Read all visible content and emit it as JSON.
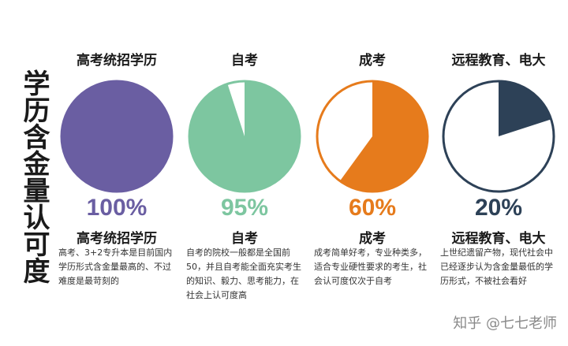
{
  "side_title": "学历含金量认可度",
  "chart_data": {
    "type": "pie",
    "title": "学历含金量认可度",
    "charts": [
      {
        "header": "高考统招学历",
        "label": "高考统招学历",
        "value": 100,
        "percent_text": "100%",
        "color": "#6a5ea2",
        "style": "filled",
        "description": "高考、3+2专升本是目前国内学历形式含金量最高的、不过难度是最苛刻的"
      },
      {
        "header": "自考",
        "label": "自考",
        "value": 95,
        "percent_text": "95%",
        "color": "#7dc6a0",
        "style": "filled",
        "description": "自考的院校一般都是全国前50，并且自考能全面充实考生的知识、毅力、思考能力，在社会上认可度高"
      },
      {
        "header": "成考",
        "label": "成考",
        "value": 60,
        "percent_text": "60%",
        "color": "#e67b1c",
        "style": "outlined",
        "description": "成考简单好考，专业种类多，适合专业硬性要求的考生，社会认可度仅次于自考"
      },
      {
        "header": "远程教育、电大",
        "label": "远程教育、电大",
        "value": 20,
        "percent_text": "20%",
        "color": "#2d4157",
        "style": "outlined",
        "description": "上世纪遗留产物，现代社会中已经逐步认为含金量最低的学历形式，不被社会看好"
      }
    ]
  },
  "watermark": "知乎 @七七老师"
}
